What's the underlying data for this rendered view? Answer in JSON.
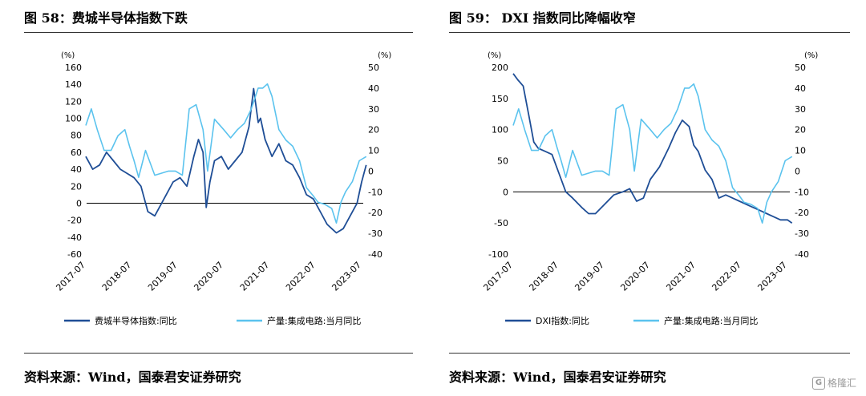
{
  "left": {
    "title": "图 58：费城半导体指数下跌",
    "source": "资料来源：Wind，国泰君安证券研究"
  },
  "right": {
    "title": "图 59：  DXI 指数同比降幅收窄",
    "source": "资料来源：Wind，国泰君安证券研究"
  },
  "watermark": {
    "text": "格隆汇",
    "icon": "G"
  },
  "colors": {
    "dark": "#1f4e96",
    "light": "#5bc3ee"
  },
  "chart_data": [
    {
      "type": "line",
      "x_labels": [
        "2017-07",
        "2018-07",
        "2019-07",
        "2020-07",
        "2021-07",
        "2022-07",
        "2023-07"
      ],
      "y_left": {
        "unit": "(%)",
        "min": -60,
        "max": 160,
        "ticks": [
          -60,
          -40,
          -20,
          0,
          20,
          40,
          60,
          80,
          100,
          120,
          140,
          160
        ]
      },
      "y_right": {
        "unit": "(%)",
        "min": -40,
        "max": 50,
        "ticks": [
          -40,
          -30,
          -20,
          -10,
          0,
          10,
          20,
          30,
          40,
          50
        ]
      },
      "series": [
        {
          "name": "费城半导体指数:同比",
          "axis": "left",
          "color": "#1f4e96",
          "x": [
            2017.5,
            2017.65,
            2017.8,
            2017.95,
            2018.1,
            2018.25,
            2018.4,
            2018.55,
            2018.7,
            2018.85,
            2019.0,
            2019.1,
            2019.25,
            2019.4,
            2019.55,
            2019.7,
            2019.85,
            2019.95,
            2020.05,
            2020.12,
            2020.2,
            2020.3,
            2020.45,
            2020.6,
            2020.75,
            2020.9,
            2021.05,
            2021.15,
            2021.25,
            2021.3,
            2021.4,
            2021.55,
            2021.7,
            2021.85,
            2022.0,
            2022.15,
            2022.3,
            2022.45,
            2022.6,
            2022.75,
            2022.85,
            2022.95,
            2023.1,
            2023.25,
            2023.4,
            2023.5,
            2023.6
          ],
          "y": [
            55,
            40,
            45,
            60,
            50,
            40,
            35,
            30,
            20,
            -10,
            -15,
            -5,
            10,
            25,
            30,
            20,
            55,
            75,
            60,
            -5,
            25,
            50,
            55,
            40,
            50,
            60,
            90,
            135,
            95,
            100,
            75,
            55,
            70,
            50,
            45,
            30,
            10,
            5,
            -10,
            -25,
            -30,
            -35,
            -30,
            -15,
            0,
            25,
            45
          ]
        },
        {
          "name": "产量:集成电路:当月同比",
          "axis": "right",
          "color": "#5bc3ee",
          "x": [
            2017.5,
            2017.62,
            2017.75,
            2017.9,
            2018.05,
            2018.2,
            2018.35,
            2018.45,
            2018.55,
            2018.65,
            2018.8,
            2019.0,
            2019.15,
            2019.3,
            2019.45,
            2019.6,
            2019.75,
            2019.9,
            2020.05,
            2020.15,
            2020.3,
            2020.5,
            2020.65,
            2020.8,
            2020.95,
            2021.1,
            2021.25,
            2021.35,
            2021.45,
            2021.55,
            2021.7,
            2021.85,
            2022.0,
            2022.15,
            2022.3,
            2022.45,
            2022.55,
            2022.7,
            2022.85,
            2022.95,
            2023.05,
            2023.15,
            2023.3,
            2023.45,
            2023.6
          ],
          "y": [
            22,
            30,
            20,
            10,
            10,
            17,
            20,
            12,
            5,
            -3,
            10,
            -2,
            -1,
            0,
            0,
            -2,
            30,
            32,
            20,
            0,
            25,
            20,
            16,
            20,
            23,
            30,
            40,
            40,
            42,
            36,
            20,
            15,
            12,
            5,
            -8,
            -12,
            -15,
            -16,
            -18,
            -25,
            -15,
            -10,
            -5,
            5,
            7
          ]
        }
      ]
    },
    {
      "type": "line",
      "x_labels": [
        "2017-07",
        "2018-07",
        "2019-07",
        "2020-07",
        "2021-07",
        "2022-07",
        "2023-07"
      ],
      "y_left": {
        "unit": "(%)",
        "min": -100,
        "max": 200,
        "ticks": [
          -100,
          -50,
          0,
          50,
          100,
          150,
          200
        ]
      },
      "y_right": {
        "unit": "(%)",
        "min": -40,
        "max": 50,
        "ticks": [
          -40,
          -30,
          -20,
          -10,
          0,
          10,
          20,
          30,
          40,
          50
        ]
      },
      "series": [
        {
          "name": "DXI指数:同比",
          "axis": "left",
          "color": "#1f4e96",
          "x": [
            2017.5,
            2017.6,
            2017.72,
            2017.85,
            2017.95,
            2018.05,
            2018.2,
            2018.35,
            2018.5,
            2018.65,
            2018.8,
            2019.0,
            2019.15,
            2019.3,
            2019.5,
            2019.7,
            2019.9,
            2020.05,
            2020.2,
            2020.35,
            2020.5,
            2020.7,
            2020.9,
            2021.05,
            2021.2,
            2021.35,
            2021.45,
            2021.55,
            2021.7,
            2021.85,
            2022.0,
            2022.15,
            2022.3,
            2022.45,
            2022.6,
            2022.75,
            2022.9,
            2023.05,
            2023.2,
            2023.35,
            2023.5,
            2023.6
          ],
          "y": [
            190,
            180,
            170,
            120,
            80,
            70,
            65,
            60,
            30,
            0,
            -10,
            -25,
            -35,
            -35,
            -20,
            -5,
            0,
            5,
            -15,
            -10,
            20,
            40,
            70,
            95,
            115,
            105,
            75,
            65,
            35,
            20,
            -10,
            -5,
            -10,
            -15,
            -20,
            -25,
            -30,
            -35,
            -40,
            -45,
            -45,
            -50
          ]
        },
        {
          "name": "产量:集成电路:当月同比",
          "axis": "right",
          "color": "#5bc3ee",
          "x": [
            2017.5,
            2017.62,
            2017.75,
            2017.9,
            2018.05,
            2018.2,
            2018.35,
            2018.45,
            2018.55,
            2018.65,
            2018.8,
            2019.0,
            2019.15,
            2019.3,
            2019.45,
            2019.6,
            2019.75,
            2019.9,
            2020.05,
            2020.15,
            2020.3,
            2020.5,
            2020.65,
            2020.8,
            2020.95,
            2021.1,
            2021.25,
            2021.35,
            2021.45,
            2021.55,
            2021.7,
            2021.85,
            2022.0,
            2022.15,
            2022.3,
            2022.45,
            2022.55,
            2022.7,
            2022.85,
            2022.95,
            2023.05,
            2023.15,
            2023.3,
            2023.45,
            2023.6
          ],
          "y": [
            22,
            30,
            20,
            10,
            10,
            17,
            20,
            12,
            5,
            -3,
            10,
            -2,
            -1,
            0,
            0,
            -2,
            30,
            32,
            20,
            0,
            25,
            20,
            16,
            20,
            23,
            30,
            40,
            40,
            42,
            36,
            20,
            15,
            12,
            5,
            -8,
            -12,
            -15,
            -16,
            -18,
            -25,
            -15,
            -10,
            -5,
            5,
            7
          ]
        }
      ]
    }
  ]
}
